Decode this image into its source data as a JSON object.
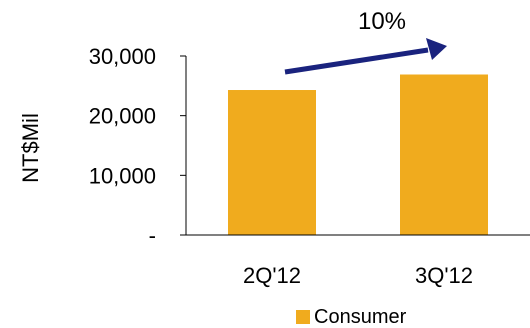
{
  "chart_data": {
    "type": "bar",
    "categories": [
      "2Q'12",
      "3Q'12"
    ],
    "series": [
      {
        "name": "Consumer",
        "values": [
          24300,
          26900
        ],
        "color": "#f0ab1e"
      }
    ],
    "ylabel": "NT$Mil",
    "ylim": [
      0,
      30000
    ],
    "yticks": [
      {
        "value": 0,
        "label": "-"
      },
      {
        "value": 10000,
        "label": "10,000"
      },
      {
        "value": 20000,
        "label": "20,000"
      },
      {
        "value": 30000,
        "label": "30,000"
      }
    ],
    "annotation": {
      "text": "10%",
      "arrow_color": "#1a237e"
    },
    "legend_position": "bottom",
    "grid": false
  }
}
